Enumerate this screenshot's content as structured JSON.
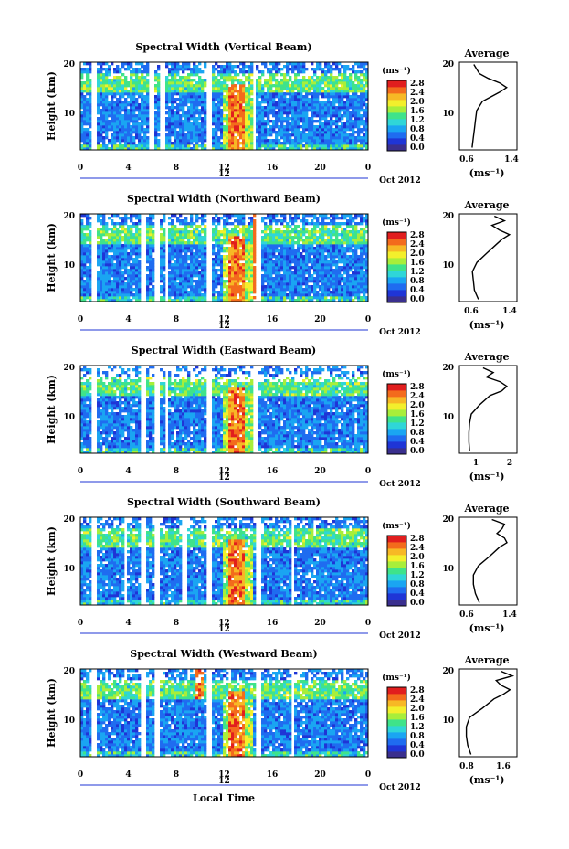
{
  "figure": {
    "x_axis_label": "Local Time",
    "date_label": "Oct 2012",
    "day_label": "12",
    "y_axis_label": "Height (km)",
    "colorbar_unit": "(ms⁻¹)",
    "average_title": "Average",
    "average_unit": "(ms⁻¹)"
  },
  "colors": {
    "colormap": [
      "#3a2f8e",
      "#1f35d6",
      "#1f6cf0",
      "#1aa5f2",
      "#2fd6d8",
      "#3fe38a",
      "#a8ee3a",
      "#f3ef2c",
      "#f7b825",
      "#f36b1c",
      "#e11e1e"
    ],
    "missing": "#ffffff",
    "profile": "#000000"
  },
  "chart_data": [
    {
      "type": "heatmap",
      "title": "Spectral Width (Vertical Beam)",
      "xlabel": "Local Time",
      "ylabel": "Height (km)",
      "x_ticks": [
        "0",
        "4",
        "8",
        "12",
        "16",
        "20",
        "0"
      ],
      "y_ticks": [
        "10",
        "20"
      ],
      "xlim": [
        0,
        24
      ],
      "ylim": [
        1.5,
        20.5
      ],
      "colorbar": {
        "label": "(ms⁻¹)",
        "ticks": [
          "0.0",
          "0.4",
          "0.8",
          "1.2",
          "1.6",
          "2.0",
          "2.4",
          "2.8"
        ],
        "range": [
          0.0,
          3.0
        ]
      },
      "average_profile": {
        "title": "Average",
        "xlabel": "(ms⁻¹)",
        "x_ticks": [
          "0.6",
          "1.4"
        ],
        "xlim": [
          0.5,
          1.5
        ],
        "y_ticks": [
          "10",
          "20"
        ],
        "height_km": [
          2,
          4,
          6,
          8,
          10,
          12,
          13,
          14,
          15,
          16,
          17,
          18,
          19,
          20
        ],
        "value": [
          0.72,
          0.74,
          0.76,
          0.78,
          0.8,
          0.9,
          1.05,
          1.2,
          1.32,
          1.2,
          1.0,
          0.85,
          0.8,
          0.75
        ]
      },
      "gaps_local_time_h": [
        [
          1.0,
          1.3
        ],
        [
          5.7,
          6.1
        ],
        [
          6.6,
          7.0
        ],
        [
          10.5,
          10.9
        ],
        [
          14.3,
          14.7
        ]
      ],
      "features": "Spectral width mostly 0.2-1.2 ms-1; high values (>2 ms-1) near 13 LT below 12 km"
    },
    {
      "type": "heatmap",
      "title": "Spectral Width (Northward Beam)",
      "xlabel": "Local Time",
      "ylabel": "Height (km)",
      "x_ticks": [
        "0",
        "4",
        "8",
        "12",
        "16",
        "20",
        "0"
      ],
      "y_ticks": [
        "10",
        "20"
      ],
      "xlim": [
        0,
        24
      ],
      "ylim": [
        1.5,
        20.5
      ],
      "colorbar": {
        "label": "(ms⁻¹)",
        "ticks": [
          "0.0",
          "0.4",
          "0.8",
          "1.2",
          "1.6",
          "2.0",
          "2.4",
          "2.8"
        ],
        "range": [
          0.0,
          3.0
        ]
      },
      "average_profile": {
        "title": "Average",
        "xlabel": "(ms⁻¹)",
        "x_ticks": [
          "0.6",
          "1.4"
        ],
        "xlim": [
          0.4,
          1.55
        ],
        "y_ticks": [
          "10",
          "20"
        ],
        "height_km": [
          2,
          4,
          6,
          8,
          10,
          12,
          14,
          15,
          16,
          17,
          18,
          19,
          20
        ],
        "value": [
          0.78,
          0.7,
          0.68,
          0.66,
          0.75,
          0.95,
          1.15,
          1.25,
          1.4,
          1.2,
          1.05,
          1.3,
          1.1
        ]
      },
      "gaps_local_time_h": [
        [
          1.0,
          1.3
        ],
        [
          5.0,
          5.4
        ],
        [
          6.2,
          6.6
        ],
        [
          7.0,
          7.3
        ],
        [
          10.6,
          11.0
        ],
        [
          14.6,
          15.0
        ]
      ],
      "features": "Red streak at ~14.5 LT up to 20 km; enhanced width near 13 LT"
    },
    {
      "type": "heatmap",
      "title": "Spectral Width (Eastward Beam)",
      "xlabel": "Local Time",
      "ylabel": "Height (km)",
      "x_ticks": [
        "0",
        "4",
        "8",
        "12",
        "16",
        "20",
        "0"
      ],
      "y_ticks": [
        "10",
        "20"
      ],
      "xlim": [
        0,
        24
      ],
      "ylim": [
        1.5,
        20.5
      ],
      "colorbar": {
        "label": "(ms⁻¹)",
        "ticks": [
          "0.0",
          "0.4",
          "0.8",
          "1.2",
          "1.6",
          "2.0",
          "2.4",
          "2.8"
        ],
        "range": [
          0.0,
          3.0
        ]
      },
      "average_profile": {
        "title": "Average",
        "xlabel": "(ms⁻¹)",
        "x_ticks": [
          "1",
          "2"
        ],
        "xlim": [
          0.5,
          2.2
        ],
        "y_ticks": [
          "10",
          "20"
        ],
        "height_km": [
          2,
          4,
          6,
          8,
          10,
          12,
          14,
          15,
          16,
          17,
          18,
          19,
          20
        ],
        "value": [
          0.8,
          0.78,
          0.78,
          0.8,
          0.85,
          1.1,
          1.4,
          1.75,
          1.9,
          1.7,
          1.3,
          1.5,
          1.2
        ]
      },
      "gaps_local_time_h": [
        [
          1.0,
          1.3
        ],
        [
          5.0,
          5.4
        ],
        [
          6.2,
          6.6
        ],
        [
          7.0,
          7.3
        ],
        [
          10.6,
          11.0
        ],
        [
          14.4,
          14.8
        ]
      ],
      "features": "Strong red band near 13 LT below 15 km; missing data above ~17 km"
    },
    {
      "type": "heatmap",
      "title": "Spectral Width (Southward Beam)",
      "xlabel": "Local Time",
      "ylabel": "Height (km)",
      "x_ticks": [
        "0",
        "4",
        "8",
        "12",
        "16",
        "20",
        "0"
      ],
      "y_ticks": [
        "10",
        "20"
      ],
      "xlim": [
        0,
        24
      ],
      "ylim": [
        1.5,
        20.5
      ],
      "colorbar": {
        "label": "(ms⁻¹)",
        "ticks": [
          "0.0",
          "0.4",
          "0.8",
          "1.2",
          "1.6",
          "2.0",
          "2.4",
          "2.8"
        ],
        "range": [
          0.0,
          3.0
        ]
      },
      "average_profile": {
        "title": "Average",
        "xlabel": "(ms⁻¹)",
        "x_ticks": [
          "0.6",
          "1.4"
        ],
        "xlim": [
          0.4,
          1.55
        ],
        "y_ticks": [
          "10",
          "20"
        ],
        "height_km": [
          2,
          4,
          6,
          8,
          10,
          12,
          14,
          15,
          16,
          17,
          18,
          19,
          20
        ],
        "value": [
          0.8,
          0.72,
          0.68,
          0.68,
          0.78,
          1.0,
          1.2,
          1.35,
          1.3,
          1.15,
          1.25,
          1.3,
          1.05
        ]
      },
      "gaps_local_time_h": [
        [
          1.0,
          1.3
        ],
        [
          3.6,
          3.9
        ],
        [
          5.0,
          5.4
        ],
        [
          6.2,
          6.6
        ],
        [
          8.5,
          8.9
        ],
        [
          10.6,
          11.0
        ],
        [
          14.6,
          15.0
        ],
        [
          17.5,
          17.8
        ]
      ],
      "features": "Patchy data; enhanced width 12-14 LT"
    },
    {
      "type": "heatmap",
      "title": "Spectral Width (Westward Beam)",
      "xlabel": "Local Time",
      "ylabel": "Height (km)",
      "x_ticks": [
        "0",
        "4",
        "8",
        "12",
        "16",
        "20",
        "0"
      ],
      "y_ticks": [
        "10",
        "20"
      ],
      "xlim": [
        0,
        24
      ],
      "ylim": [
        1.5,
        20.5
      ],
      "colorbar": {
        "label": "(ms⁻¹)",
        "ticks": [
          "0.0",
          "0.4",
          "0.8",
          "1.2",
          "1.6",
          "2.0",
          "2.4",
          "2.8"
        ],
        "range": [
          0.0,
          3.0
        ]
      },
      "average_profile": {
        "title": "Average",
        "xlabel": "(ms⁻¹)",
        "x_ticks": [
          "0.8",
          "1.6"
        ],
        "xlim": [
          0.6,
          1.85
        ],
        "y_ticks": [
          "10",
          "20"
        ],
        "height_km": [
          2,
          4,
          6,
          8,
          10,
          12,
          14,
          15,
          16,
          17,
          18,
          19,
          20
        ],
        "value": [
          0.85,
          0.78,
          0.75,
          0.75,
          0.82,
          1.1,
          1.35,
          1.55,
          1.7,
          1.5,
          1.4,
          1.75,
          1.5
        ]
      },
      "gaps_local_time_h": [
        [
          1.0,
          1.3
        ],
        [
          5.0,
          5.4
        ],
        [
          6.2,
          6.6
        ],
        [
          10.6,
          11.0
        ],
        [
          14.6,
          15.0
        ],
        [
          17.5,
          17.8
        ]
      ],
      "features": "Red streak near 10 LT at upper heights; strong red band near 13 LT"
    }
  ]
}
